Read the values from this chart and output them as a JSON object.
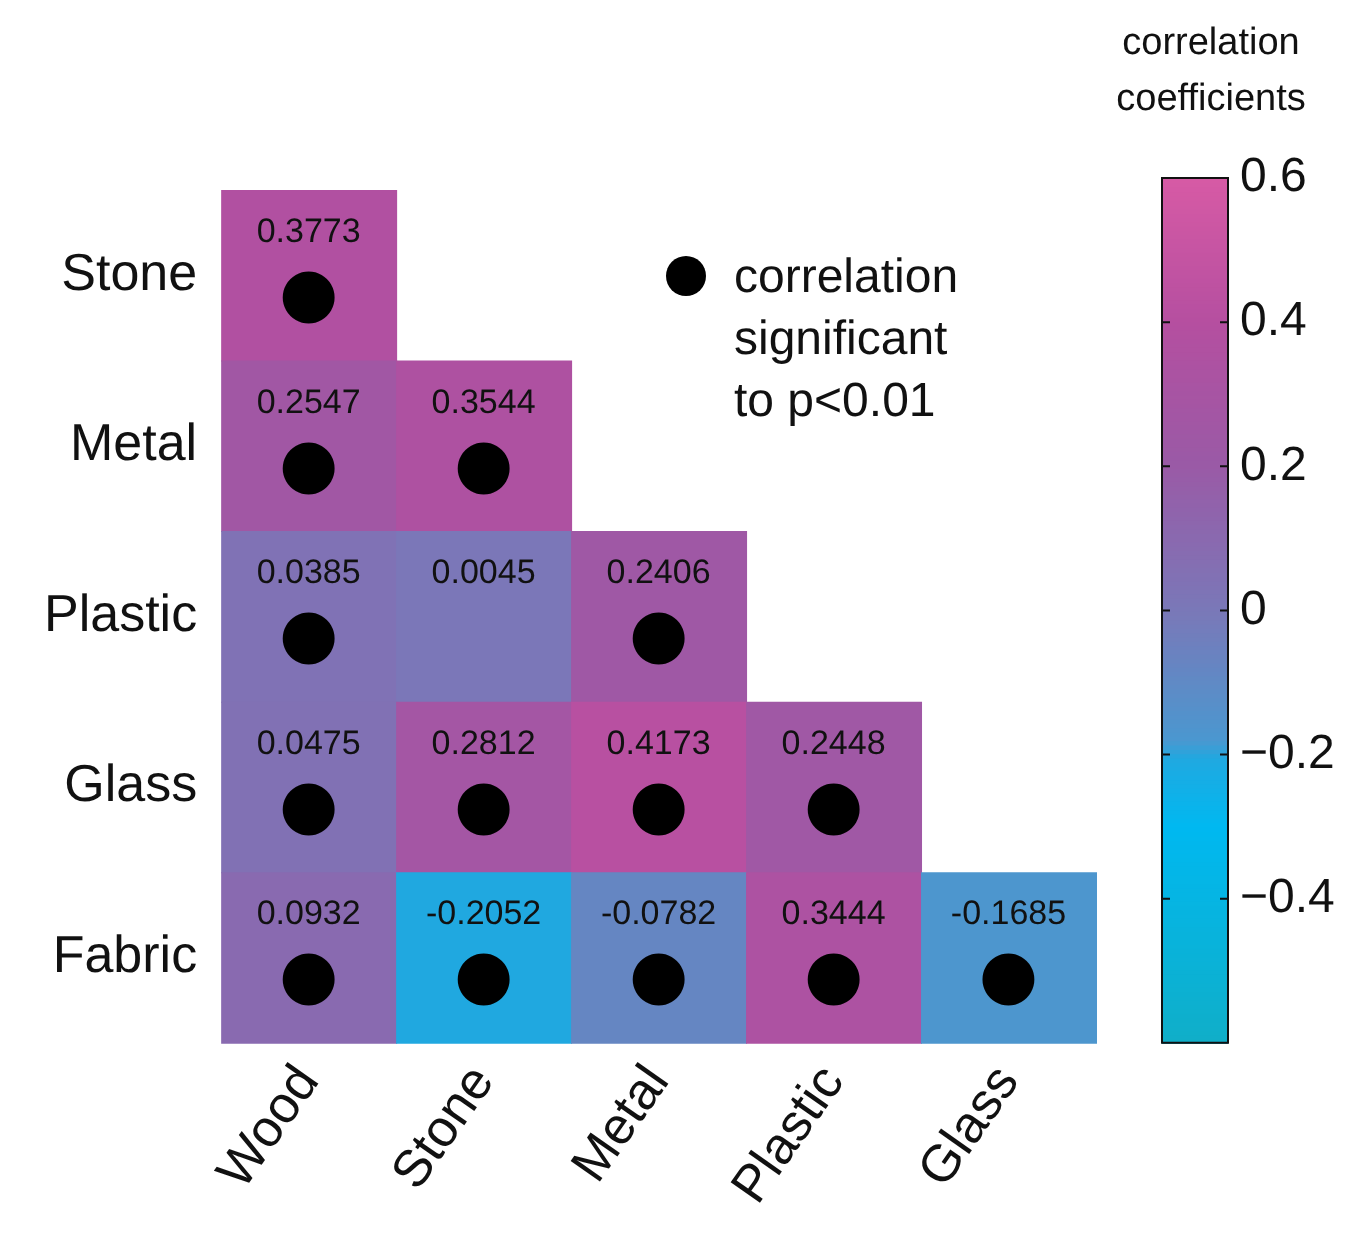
{
  "chart_data": {
    "type": "heatmap",
    "categories": [
      "Wood",
      "Stone",
      "Metal",
      "Plastic",
      "Glass"
    ],
    "y_categories": [
      "Stone",
      "Metal",
      "Plastic",
      "Glass",
      "Fabric"
    ],
    "cells": [
      [
        0.3773,
        null,
        null,
        null,
        null
      ],
      [
        0.2547,
        0.3544,
        null,
        null,
        null
      ],
      [
        0.0385,
        0.0045,
        0.2406,
        null,
        null
      ],
      [
        0.0475,
        0.2812,
        0.4173,
        0.2448,
        null
      ],
      [
        0.0932,
        -0.2052,
        -0.0782,
        0.3444,
        -0.1685
      ]
    ],
    "data_labels": true,
    "clabel": "correlation coefficients",
    "clim": [
      -0.6,
      0.6
    ],
    "cticks": [
      {
        "value": 0.6,
        "label": "0.6"
      },
      {
        "value": 0.4,
        "label": "0.4"
      },
      {
        "value": 0.2,
        "label": "0.2"
      },
      0,
      {
        "value": -0.2,
        "label": "−0.2"
      },
      {
        "value": -0.4,
        "label": "−0.4"
      }
    ],
    "cell_labels": [
      [
        "0.3773\n●",
        null,
        null,
        null,
        null
      ],
      [
        "0.2547\n●",
        "0.3544\n●",
        null,
        null,
        null
      ],
      [
        "0.0385\n●",
        "0.0045",
        "0.2406\n●",
        null,
        null
      ],
      [
        "0.0475\n●",
        "0.2812\n●",
        "0.4173\n●",
        "0.2448\n●",
        null
      ],
      [
        "0.0932\n●",
        "-0.2052\n●",
        "-0.0782\n●",
        "0.3444\n●",
        "-0.1685\n●"
      ]
    ],
    "annotations": [
      "correlation significant to p<0.01"
    ],
    "grid": false
  }
}
